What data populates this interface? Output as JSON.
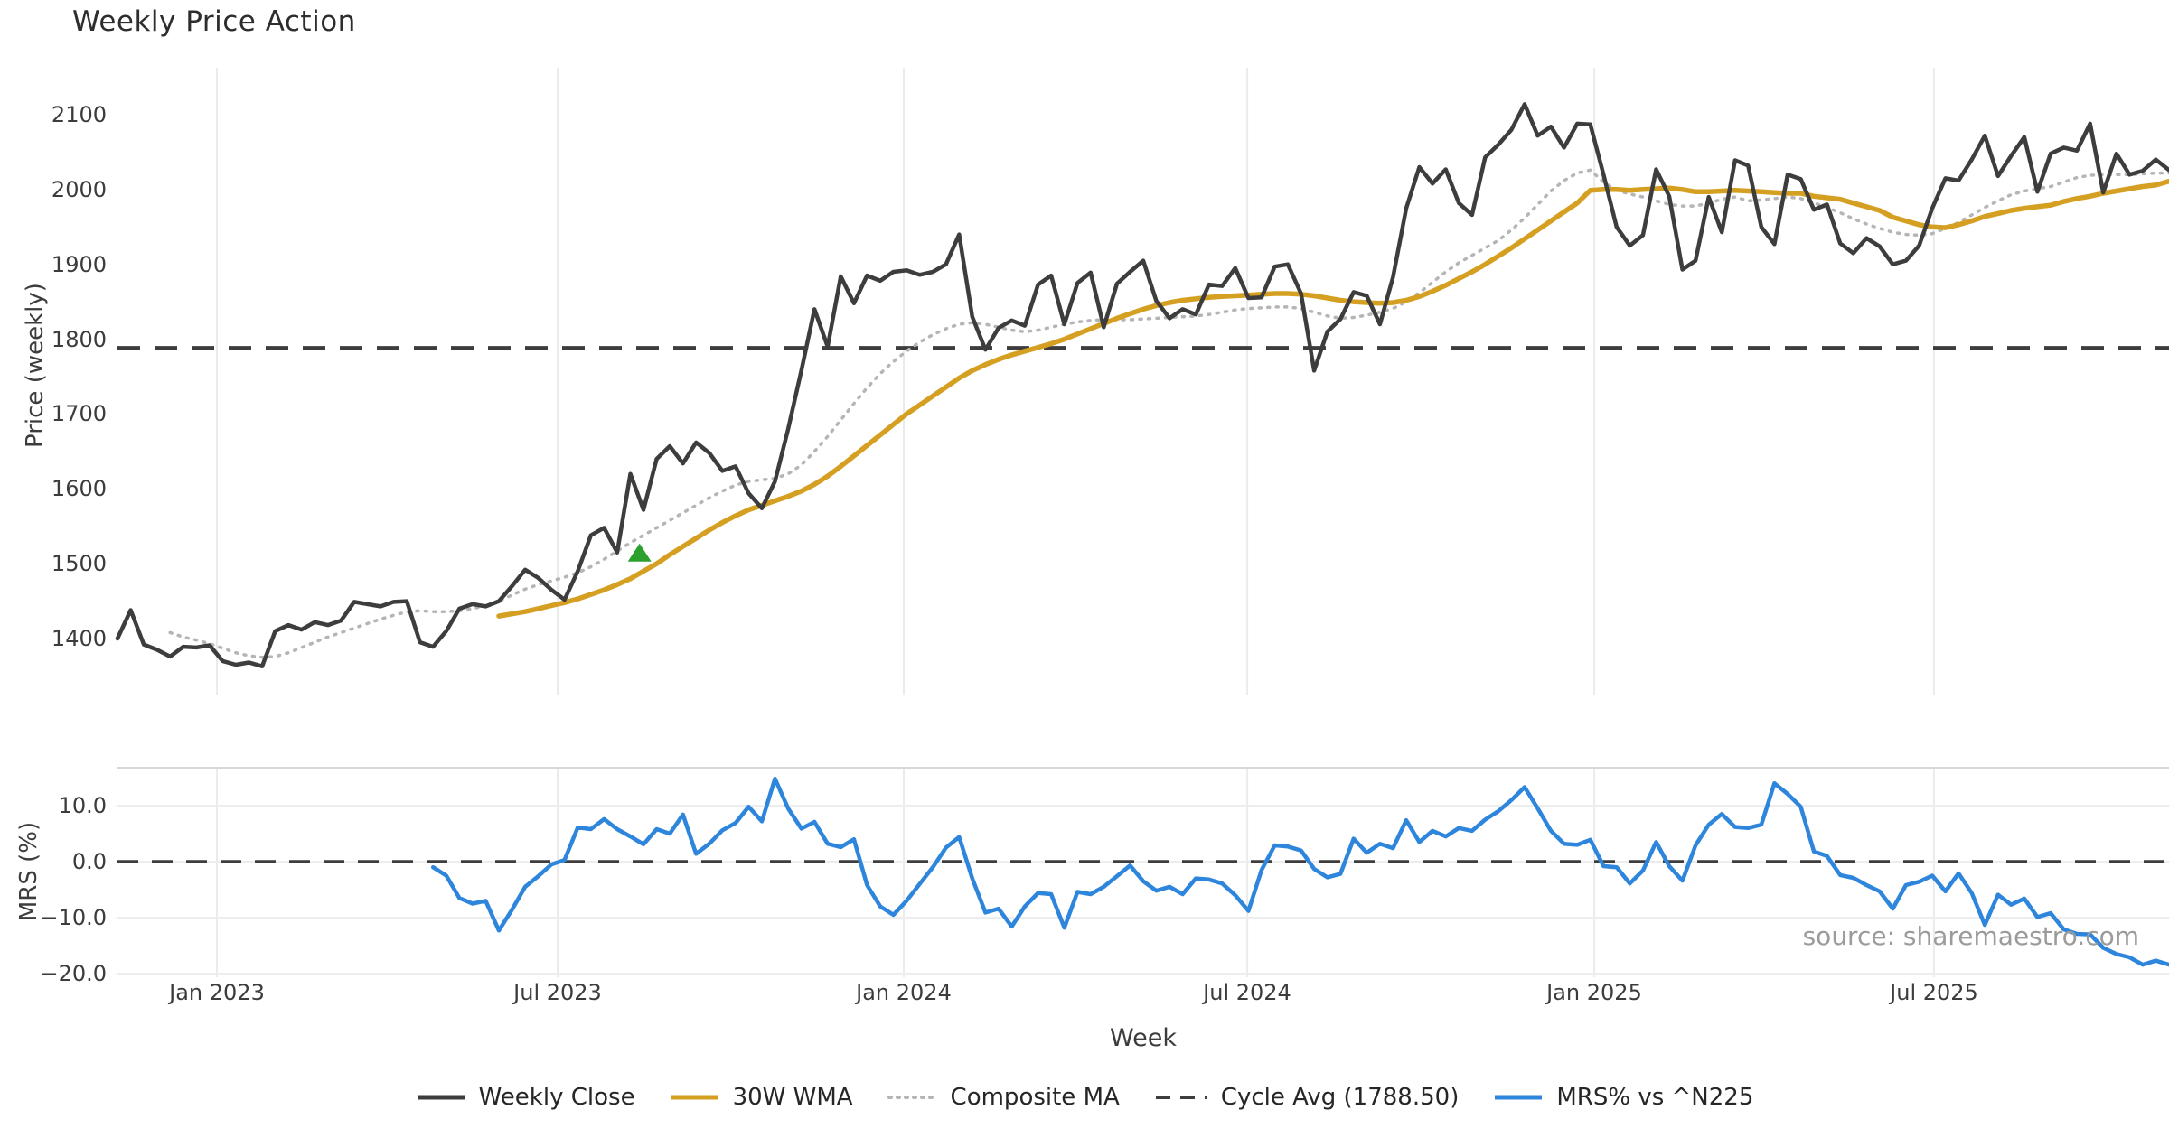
{
  "title": "Weekly Price Action",
  "source_note": "source: sharemaestro.com",
  "legend": {
    "items": [
      {
        "label": "Weekly Close",
        "swatch": "solid",
        "color": "#3d3d3d"
      },
      {
        "label": "30W WMA",
        "swatch": "solid",
        "color": "#d5a021"
      },
      {
        "label": "Composite MA",
        "swatch": "dotted",
        "color": "#b5b5b5"
      },
      {
        "label": "Cycle Avg (1788.50)",
        "swatch": "dashed",
        "color": "#3d3d3d"
      },
      {
        "label": "MRS% vs ^N225",
        "swatch": "solid",
        "color": "#2e86dc"
      }
    ]
  },
  "chart_data": {
    "type": "line",
    "title": "Weekly Price Action",
    "xlabel": "Week",
    "grid": "vertical-only-main, horizontal-and-vertical-sub",
    "legend_position": "bottom-center",
    "main_panel": {
      "ylabel": "Price (weekly)",
      "ylim": [
        1355,
        2140
      ],
      "cycle_avg": 1788.5,
      "ticks": [
        {
          "label": "2100",
          "value": 2100
        },
        {
          "label": "2000",
          "value": 2000
        },
        {
          "label": "1900",
          "value": 1900
        },
        {
          "label": "1800",
          "value": 1800
        },
        {
          "label": "1700",
          "value": 1700
        },
        {
          "label": "1600",
          "value": 1600
        },
        {
          "label": "1500",
          "value": 1500
        },
        {
          "label": "1400",
          "value": 1400
        }
      ]
    },
    "sub_panel": {
      "ylabel": "MRS (%)",
      "ylim": [
        -22,
        17
      ],
      "zero_line": 0,
      "gridline_values": [
        10,
        0,
        -10,
        -20
      ],
      "ticks": [
        {
          "label": "10.0",
          "value": 10
        },
        {
          "label": "0.0",
          "value": 0
        },
        {
          "label": "−10.0",
          "value": -10
        },
        {
          "label": "−20.0",
          "value": -20
        }
      ]
    },
    "x_ticks": [
      {
        "label": "Jan 2023",
        "week": 7.56
      },
      {
        "label": "Jul 2023",
        "week": 33.47
      },
      {
        "label": "Jan 2024",
        "week": 59.79
      },
      {
        "label": "Jul 2024",
        "week": 85.91
      },
      {
        "label": "Jan 2025",
        "week": 112.3
      },
      {
        "label": "Jul 2025",
        "week": 138.13
      }
    ],
    "weeks_total": 157,
    "marker": {
      "name": "buy-signal",
      "symbol": "triangle-up",
      "color": "#2ca02c",
      "week": 39.7,
      "value": 1515
    },
    "series": [
      {
        "name": "Weekly Close",
        "panel": "main",
        "color": "#3d3d3d",
        "width": 4.5,
        "dash": "",
        "start_week": 0,
        "values": [
          1400,
          1438,
          1392,
          1385,
          1376,
          1389,
          1388,
          1391,
          1370,
          1365,
          1368,
          1363,
          1410,
          1418,
          1412,
          1422,
          1418,
          1424,
          1449,
          1446,
          1443,
          1449,
          1450,
          1395,
          1389,
          1410,
          1440,
          1446,
          1443,
          1450,
          1470,
          1492,
          1481,
          1465,
          1452,
          1490,
          1538,
          1548,
          1515,
          1620,
          1572,
          1640,
          1657,
          1634,
          1662,
          1648,
          1624,
          1630,
          1594,
          1574,
          1610,
          1680,
          1758,
          1840,
          1790,
          1884,
          1848,
          1885,
          1878,
          1890,
          1892,
          1886,
          1890,
          1900,
          1940,
          1830,
          1786,
          1815,
          1825,
          1818,
          1873,
          1885,
          1820,
          1875,
          1889,
          1816,
          1874,
          1890,
          1905,
          1851,
          1828,
          1840,
          1833,
          1873,
          1871,
          1895,
          1855,
          1856,
          1897,
          1900,
          1861,
          1758,
          1810,
          1827,
          1863,
          1858,
          1820,
          1883,
          1975,
          2030,
          2008,
          2027,
          1982,
          1966,
          2043,
          2060,
          2080,
          2114,
          2072,
          2084,
          2056,
          2088,
          2087,
          2020,
          1950,
          1925,
          1939,
          2027,
          1991,
          1893,
          1905,
          1990,
          1943,
          2039,
          2032,
          1950,
          1927,
          2020,
          2014,
          1973,
          1980,
          1928,
          1915,
          1935,
          1924,
          1900,
          1905,
          1925,
          1975,
          2015,
          2012,
          2040,
          2072,
          2018,
          2045,
          2070,
          1997,
          2048,
          2056,
          2052,
          2088,
          1996,
          2048,
          2020,
          2025,
          2040,
          2026
        ]
      },
      {
        "name": "30W WMA",
        "panel": "main",
        "color": "#d5a021",
        "width": 5.5,
        "dash": "",
        "start_week": 29,
        "values": [
          1430,
          1433,
          1436,
          1440,
          1444,
          1448,
          1453,
          1459,
          1465,
          1472,
          1480,
          1490,
          1500,
          1512,
          1523,
          1534,
          1545,
          1555,
          1564,
          1572,
          1578,
          1584,
          1590,
          1597,
          1606,
          1617,
          1630,
          1644,
          1658,
          1672,
          1686,
          1700,
          1712,
          1724,
          1736,
          1748,
          1758,
          1766,
          1773,
          1779,
          1784,
          1789,
          1794,
          1800,
          1807,
          1814,
          1821,
          1828,
          1834,
          1840,
          1845,
          1849,
          1852,
          1854,
          1856,
          1857,
          1858,
          1859,
          1860,
          1861,
          1861,
          1860,
          1858,
          1855,
          1852,
          1850,
          1849,
          1848,
          1849,
          1852,
          1857,
          1864,
          1872,
          1881,
          1890,
          1900,
          1911,
          1922,
          1934,
          1946,
          1958,
          1970,
          1982,
          1999,
          2000,
          2000,
          1999,
          2000,
          2001,
          2002,
          2000,
          1997,
          1997,
          1998,
          1999,
          1998,
          1997,
          1996,
          1995,
          1995,
          1991,
          1989,
          1987,
          1982,
          1977,
          1972,
          1963,
          1958,
          1953,
          1950,
          1949,
          1953,
          1958,
          1964,
          1968,
          1972,
          1975,
          1977,
          1979,
          1984,
          1988,
          1991,
          1995,
          1998,
          2001,
          2004,
          2006,
          2011
        ]
      },
      {
        "name": "Composite MA",
        "panel": "main",
        "color": "#b5b5b5",
        "width": 3.5,
        "dash": "2 7.5",
        "start_week": 4,
        "values": [
          1408,
          1402,
          1398,
          1393,
          1387,
          1381,
          1377,
          1375,
          1376,
          1381,
          1388,
          1395,
          1402,
          1408,
          1414,
          1420,
          1426,
          1431,
          1436,
          1437,
          1436,
          1436,
          1437,
          1440,
          1444,
          1450,
          1458,
          1466,
          1472,
          1477,
          1482,
          1488,
          1496,
          1506,
          1517,
          1528,
          1538,
          1548,
          1558,
          1568,
          1578,
          1588,
          1597,
          1605,
          1610,
          1612,
          1614,
          1620,
          1632,
          1650,
          1670,
          1692,
          1714,
          1735,
          1754,
          1770,
          1784,
          1796,
          1806,
          1814,
          1820,
          1822,
          1820,
          1816,
          1812,
          1810,
          1812,
          1816,
          1820,
          1823,
          1825,
          1826,
          1826,
          1826,
          1827,
          1828,
          1829,
          1830,
          1831,
          1833,
          1836,
          1839,
          1841,
          1842,
          1843,
          1843,
          1841,
          1836,
          1831,
          1828,
          1829,
          1832,
          1836,
          1841,
          1850,
          1862,
          1876,
          1890,
          1902,
          1912,
          1922,
          1932,
          1946,
          1962,
          1980,
          1998,
          2012,
          2022,
          2026,
          2010,
          1999,
          1994,
          1990,
          1985,
          1980,
          1978,
          1978,
          1982,
          1987,
          1990,
          1985,
          1986,
          1988,
          1990,
          1988,
          1982,
          1976,
          1969,
          1961,
          1954,
          1948,
          1943,
          1940,
          1939,
          1941,
          1948,
          1956,
          1966,
          1976,
          1985,
          1993,
          1998,
          2001,
          2004,
          2010,
          2016,
          2019,
          2020,
          2020,
          2020,
          2021,
          2022,
          2022
        ]
      },
      {
        "name": "MRS% vs ^N225",
        "panel": "sub",
        "color": "#2e86dc",
        "width": 4.5,
        "dash": "",
        "start_week": 24,
        "values": [
          -1.0,
          -2.5,
          -6.5,
          -7.5,
          -7.0,
          -12.3,
          -8.6,
          -4.5,
          -2.6,
          -0.5,
          0.3,
          6.1,
          5.8,
          7.6,
          5.8,
          4.5,
          3.1,
          5.8,
          5.0,
          8.4,
          1.4,
          3.2,
          5.6,
          6.9,
          9.8,
          7.2,
          14.8,
          9.5,
          5.9,
          7.1,
          3.2,
          2.6,
          4.0,
          -4.2,
          -8.0,
          -9.5,
          -7.0,
          -4.0,
          -1.0,
          2.5,
          4.4,
          -3.0,
          -9.1,
          -8.4,
          -11.6,
          -8.0,
          -5.6,
          -5.8,
          -11.8,
          -5.4,
          -5.8,
          -4.5,
          -2.6,
          -0.7,
          -3.5,
          -5.2,
          -4.5,
          -5.8,
          -3.0,
          -3.2,
          -3.9,
          -6.0,
          -8.8,
          -1.5,
          2.9,
          2.7,
          2.0,
          -1.3,
          -2.8,
          -2.2,
          4.1,
          1.6,
          3.2,
          2.4,
          7.4,
          3.5,
          5.5,
          4.5,
          6.0,
          5.5,
          7.5,
          9.0,
          11.0,
          13.3,
          9.5,
          5.5,
          3.2,
          3.0,
          3.9,
          -0.8,
          -1.0,
          -3.9,
          -1.6,
          3.5,
          -0.8,
          -3.4,
          2.9,
          6.6,
          8.5,
          6.2,
          6.0,
          6.6,
          14.0,
          12.1,
          9.8,
          1.8,
          1.0,
          -2.4,
          -2.9,
          -4.2,
          -5.3,
          -8.4,
          -4.2,
          -3.6,
          -2.5,
          -5.3,
          -2.1,
          -5.6,
          -11.3,
          -5.9,
          -7.7,
          -6.6,
          -9.9,
          -9.2,
          -12.1,
          -12.9,
          -13.0,
          -15.4,
          -16.5,
          -17.1,
          -18.4,
          -17.7,
          -18.4
        ]
      }
    ]
  }
}
